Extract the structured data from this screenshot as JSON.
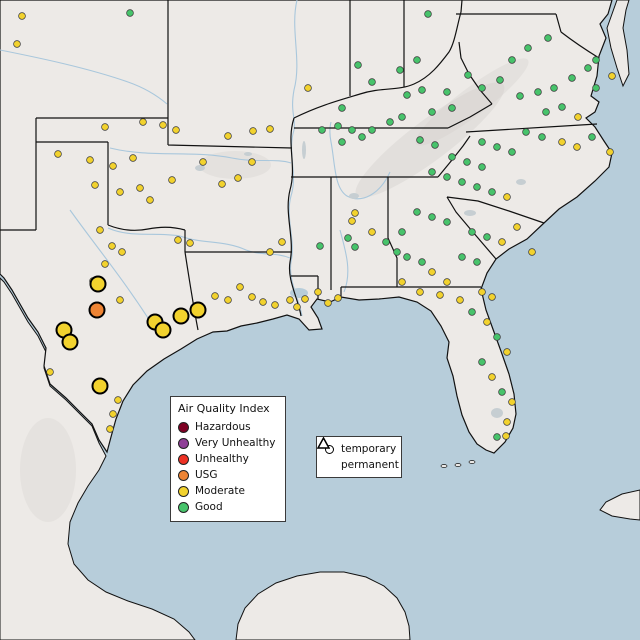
{
  "legend": {
    "title": "Air Quality Index",
    "items": [
      {
        "label": "Hazardous",
        "color": "#7e0023"
      },
      {
        "label": "Very Unhealthy",
        "color": "#8f3f97"
      },
      {
        "label": "Unhealthy",
        "color": "#ed3124"
      },
      {
        "label": "USG",
        "color": "#ee8434"
      },
      {
        "label": "Moderate",
        "color": "#f2d22e"
      },
      {
        "label": "Good",
        "color": "#47c36b"
      }
    ]
  },
  "shape_legend": {
    "items": [
      {
        "label": "temporary",
        "shape": "circle"
      },
      {
        "label": "permanent",
        "shape": "triangle"
      }
    ]
  },
  "map": {
    "colors": {
      "water": "#b7cdda",
      "land": "#edeae7",
      "border": "#111111",
      "river": "#a9c7dc",
      "lake": "#c6ced2"
    }
  },
  "stations": {
    "small": {
      "Moderate": [
        [
          22,
          16
        ],
        [
          17,
          44
        ],
        [
          105,
          127
        ],
        [
          143,
          122
        ],
        [
          163,
          125
        ],
        [
          176,
          130
        ],
        [
          58,
          154
        ],
        [
          90,
          160
        ],
        [
          113,
          166
        ],
        [
          133,
          158
        ],
        [
          95,
          185
        ],
        [
          120,
          192
        ],
        [
          140,
          188
        ],
        [
          172,
          180
        ],
        [
          150,
          200
        ],
        [
          203,
          162
        ],
        [
          222,
          184
        ],
        [
          100,
          230
        ],
        [
          112,
          246
        ],
        [
          122,
          252
        ],
        [
          105,
          264
        ],
        [
          93,
          281
        ],
        [
          120,
          300
        ],
        [
          178,
          240
        ],
        [
          190,
          243
        ],
        [
          50,
          372
        ],
        [
          118,
          400
        ],
        [
          113,
          414
        ],
        [
          110,
          429
        ],
        [
          215,
          296
        ],
        [
          228,
          300
        ],
        [
          240,
          287
        ],
        [
          252,
          297
        ],
        [
          263,
          302
        ],
        [
          275,
          305
        ],
        [
          290,
          300
        ],
        [
          297,
          307
        ],
        [
          305,
          299
        ],
        [
          318,
          292
        ],
        [
          328,
          303
        ],
        [
          338,
          298
        ],
        [
          270,
          252
        ],
        [
          282,
          242
        ],
        [
          355,
          213
        ],
        [
          352,
          221
        ],
        [
          238,
          178
        ],
        [
          252,
          162
        ],
        [
          228,
          136
        ],
        [
          253,
          131
        ],
        [
          270,
          129
        ],
        [
          308,
          88
        ],
        [
          612,
          76
        ],
        [
          578,
          117
        ],
        [
          562,
          142
        ],
        [
          577,
          147
        ],
        [
          507,
          197
        ],
        [
          502,
          242
        ],
        [
          517,
          227
        ],
        [
          532,
          252
        ],
        [
          610,
          152
        ],
        [
          372,
          232
        ],
        [
          432,
          272
        ],
        [
          447,
          282
        ],
        [
          402,
          282
        ],
        [
          420,
          292
        ],
        [
          440,
          295
        ],
        [
          460,
          300
        ],
        [
          482,
          292
        ],
        [
          492,
          297
        ],
        [
          487,
          322
        ],
        [
          507,
          352
        ],
        [
          492,
          377
        ],
        [
          512,
          402
        ],
        [
          507,
          422
        ],
        [
          506,
          436
        ]
      ],
      "Good": [
        [
          130,
          13
        ],
        [
          428,
          14
        ],
        [
          322,
          130
        ],
        [
          338,
          126
        ],
        [
          352,
          130
        ],
        [
          342,
          142
        ],
        [
          362,
          137
        ],
        [
          372,
          130
        ],
        [
          390,
          122
        ],
        [
          402,
          117
        ],
        [
          358,
          65
        ],
        [
          372,
          82
        ],
        [
          400,
          70
        ],
        [
          417,
          60
        ],
        [
          407,
          95
        ],
        [
          422,
          90
        ],
        [
          447,
          92
        ],
        [
          432,
          112
        ],
        [
          452,
          108
        ],
        [
          342,
          108
        ],
        [
          420,
          140
        ],
        [
          435,
          145
        ],
        [
          520,
          96
        ],
        [
          538,
          92
        ],
        [
          554,
          88
        ],
        [
          572,
          78
        ],
        [
          588,
          68
        ],
        [
          596,
          60
        ],
        [
          596,
          88
        ],
        [
          546,
          112
        ],
        [
          562,
          107
        ],
        [
          526,
          132
        ],
        [
          542,
          137
        ],
        [
          592,
          137
        ],
        [
          482,
          142
        ],
        [
          497,
          147
        ],
        [
          512,
          152
        ],
        [
          452,
          157
        ],
        [
          467,
          162
        ],
        [
          482,
          167
        ],
        [
          432,
          172
        ],
        [
          447,
          177
        ],
        [
          462,
          182
        ],
        [
          477,
          187
        ],
        [
          492,
          192
        ],
        [
          417,
          212
        ],
        [
          432,
          217
        ],
        [
          447,
          222
        ],
        [
          402,
          232
        ],
        [
          472,
          232
        ],
        [
          487,
          237
        ],
        [
          462,
          257
        ],
        [
          477,
          262
        ],
        [
          468,
          75
        ],
        [
          482,
          88
        ],
        [
          500,
          80
        ],
        [
          512,
          60
        ],
        [
          528,
          48
        ],
        [
          548,
          38
        ],
        [
          386,
          242
        ],
        [
          397,
          252
        ],
        [
          407,
          257
        ],
        [
          422,
          262
        ],
        [
          348,
          238
        ],
        [
          355,
          247
        ],
        [
          320,
          246
        ],
        [
          472,
          312
        ],
        [
          497,
          337
        ],
        [
          482,
          362
        ],
        [
          502,
          392
        ],
        [
          497,
          437
        ]
      ]
    },
    "large": {
      "Moderate": [
        [
          98,
          284
        ],
        [
          64,
          330
        ],
        [
          70,
          342
        ],
        [
          100,
          386
        ],
        [
          155,
          322
        ],
        [
          163,
          330
        ],
        [
          181,
          316
        ],
        [
          198,
          310
        ]
      ],
      "USG": [
        [
          97,
          310
        ]
      ]
    }
  }
}
